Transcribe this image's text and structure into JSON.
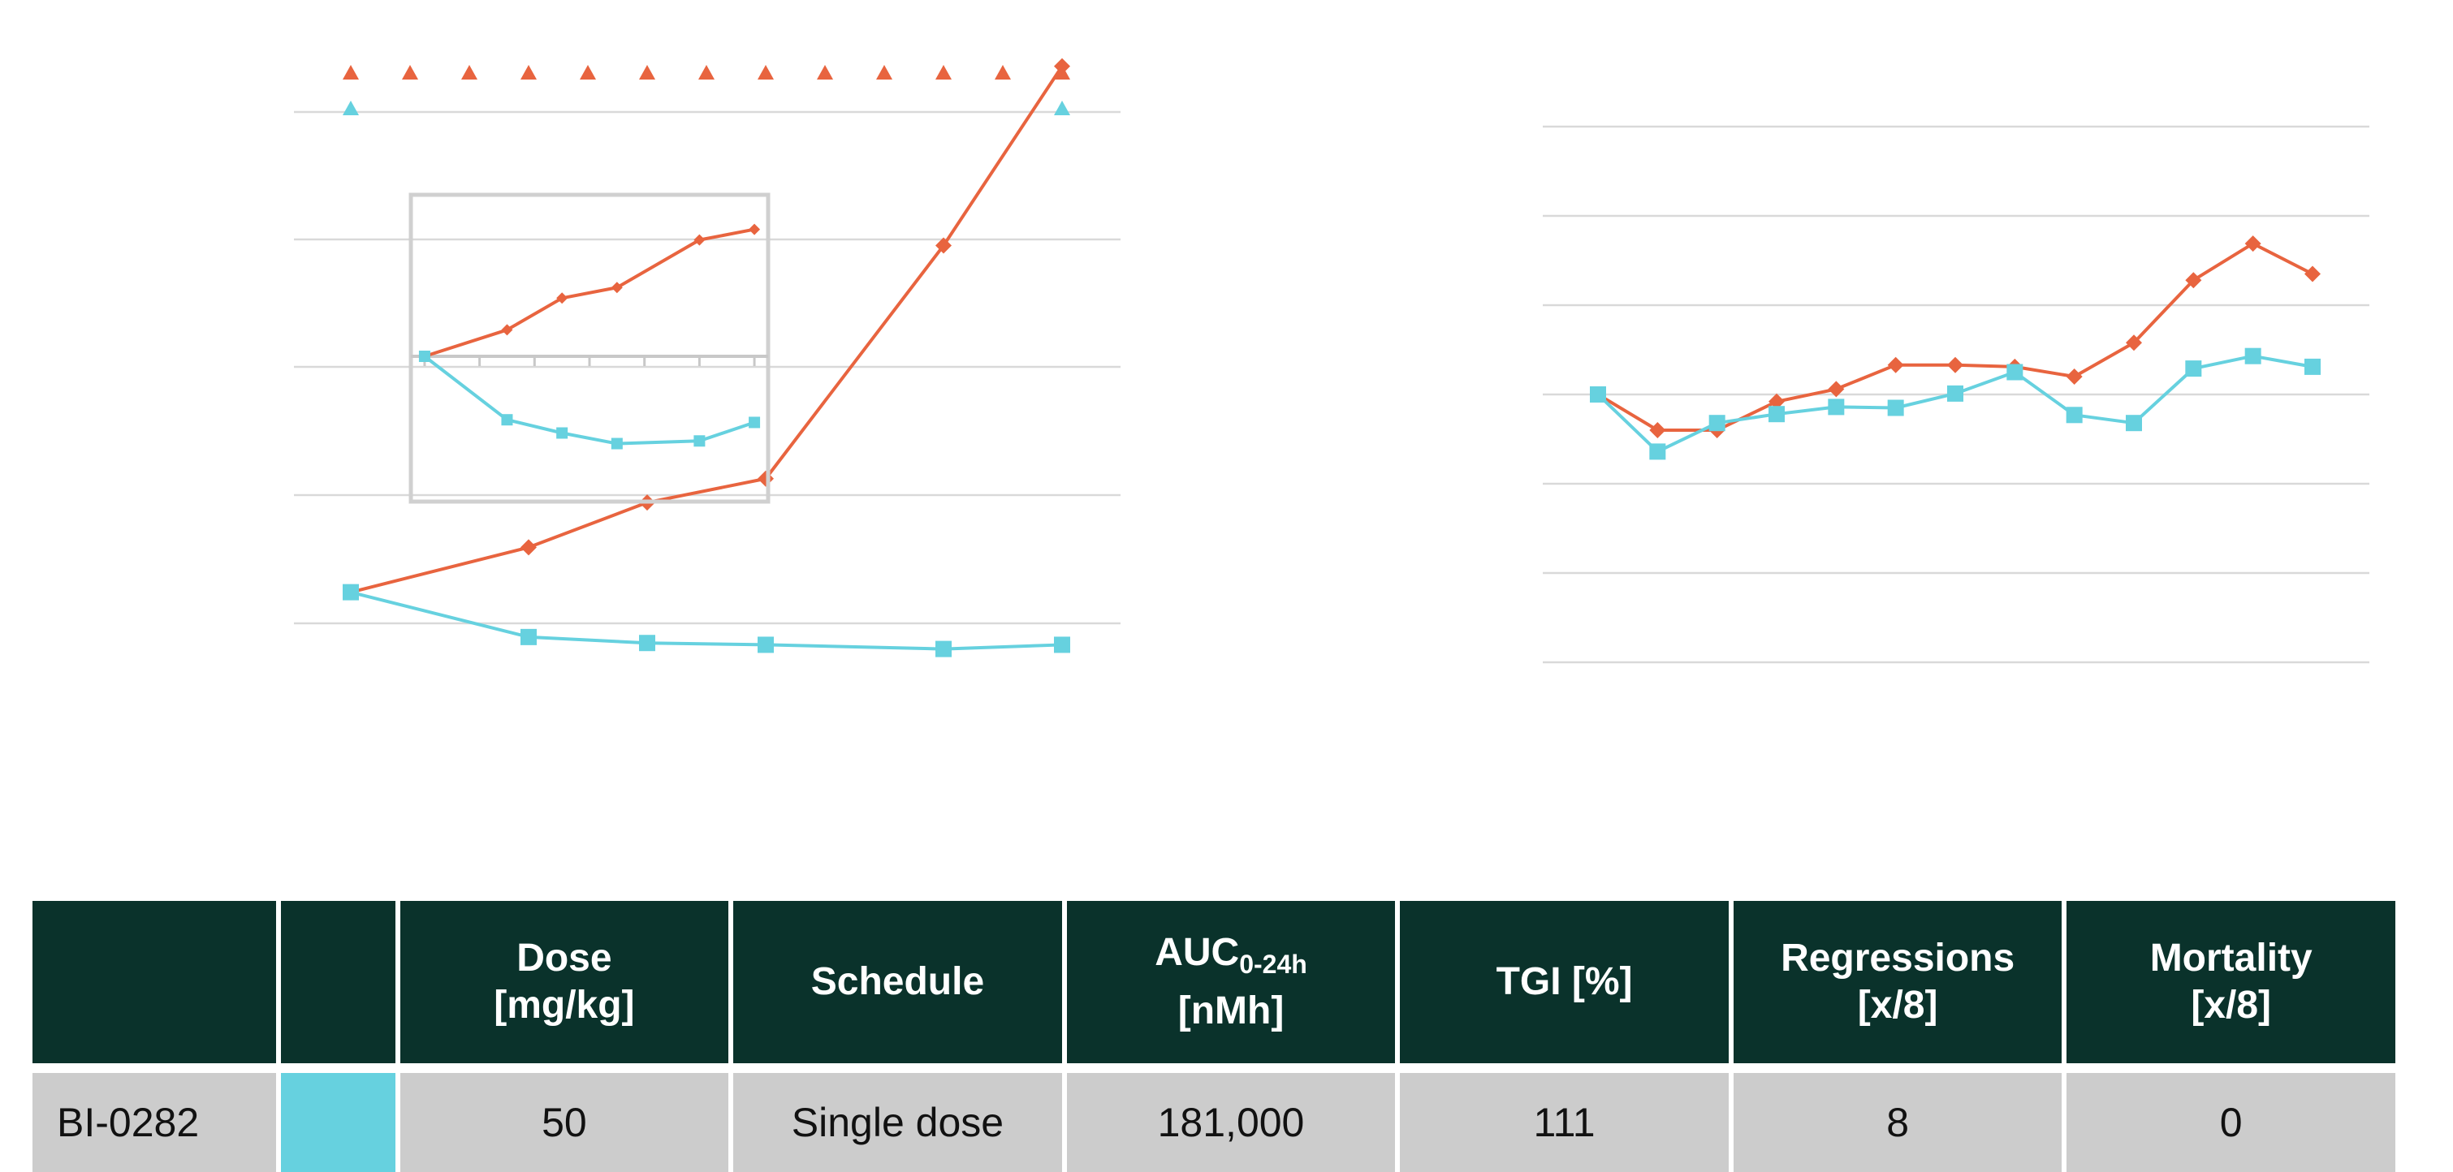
{
  "colors": {
    "series_a": "#e8643f",
    "series_b": "#66d1df",
    "grid": "#d9d9d9",
    "table_header_bg": "#0a322b",
    "table_row_bg": "#cccccc"
  },
  "chart_data": [
    {
      "type": "line",
      "grid": "horizontal",
      "series": [
        {
          "color": "#e8643f",
          "marker": "diamond",
          "x": [
            0,
            3,
            5,
            7,
            10,
            12
          ],
          "values": [
            -0.3,
            0.45,
            1.2,
            1.6,
            5.5,
            8.5
          ]
        },
        {
          "color": "#66d1df",
          "marker": "square",
          "x": [
            0,
            3,
            5,
            7,
            10,
            12
          ],
          "values": [
            -0.3,
            -1.05,
            -1.15,
            -1.18,
            -1.25,
            -1.18
          ]
        }
      ],
      "dosing_markers": [
        {
          "color": "#e8643f",
          "marker": "triangle",
          "x": [
            0,
            1,
            2,
            3,
            4,
            5,
            6,
            7,
            8,
            9,
            10,
            11,
            12
          ]
        },
        {
          "color": "#66d1df",
          "marker": "triangle",
          "x": [
            0,
            12
          ]
        }
      ],
      "ylim": [
        -1.5,
        9.5
      ],
      "xlim": [
        0,
        12
      ]
    },
    {
      "type": "line",
      "placement": "inset",
      "series": [
        {
          "color": "#e8643f",
          "marker": "diamond",
          "x": [
            0,
            3,
            5,
            7,
            10,
            12
          ],
          "values": [
            0,
            0.5,
            1.1,
            1.3,
            2.2,
            2.4
          ]
        },
        {
          "color": "#66d1df",
          "marker": "square",
          "x": [
            0,
            3,
            5,
            7,
            10,
            12
          ],
          "values": [
            0,
            -1.2,
            -1.45,
            -1.65,
            -1.6,
            -1.25
          ]
        }
      ],
      "ylim": [
        -2.9,
        2.9
      ],
      "xlim": [
        -0.5,
        12.5
      ]
    },
    {
      "type": "line",
      "grid": "horizontal",
      "series": [
        {
          "color": "#e8643f",
          "marker": "diamond",
          "x": [
            0,
            1,
            2,
            3,
            4,
            5,
            6,
            7,
            8,
            9,
            10,
            11,
            12
          ],
          "values": [
            0,
            -0.4,
            -0.4,
            -0.08,
            0.06,
            0.33,
            0.33,
            0.31,
            0.2,
            0.58,
            1.28,
            1.69,
            1.35
          ]
        },
        {
          "color": "#66d1df",
          "marker": "square",
          "x": [
            0,
            1,
            2,
            3,
            4,
            5,
            6,
            7,
            8,
            9,
            10,
            11,
            12
          ],
          "values": [
            0,
            -0.64,
            -0.32,
            -0.22,
            -0.14,
            -0.15,
            0.01,
            0.25,
            -0.23,
            -0.32,
            0.29,
            0.43,
            0.31
          ]
        }
      ],
      "ylim": [
        -3,
        3
      ],
      "xlim": [
        0,
        12
      ]
    }
  ],
  "table": {
    "headers": {
      "name": "",
      "color": "",
      "dose_line1": "Dose",
      "dose_line2": "[mg/kg]",
      "schedule": "Schedule",
      "auc_main": "AUC",
      "auc_sub": "0-24h",
      "auc_line2": "[nMh]",
      "tgi": "TGI [%]",
      "regressions_line1": "Regressions",
      "regressions_line2": "[x/8]",
      "mortality_line1": "Mortality",
      "mortality_line2": "[x/8]"
    },
    "rows": [
      {
        "name": "BI-0282",
        "swatch_color": "#66d1df",
        "dose": "50",
        "schedule": "Single dose",
        "auc": "181,000",
        "tgi": "111",
        "regressions": "8",
        "mortality": "0"
      }
    ]
  }
}
